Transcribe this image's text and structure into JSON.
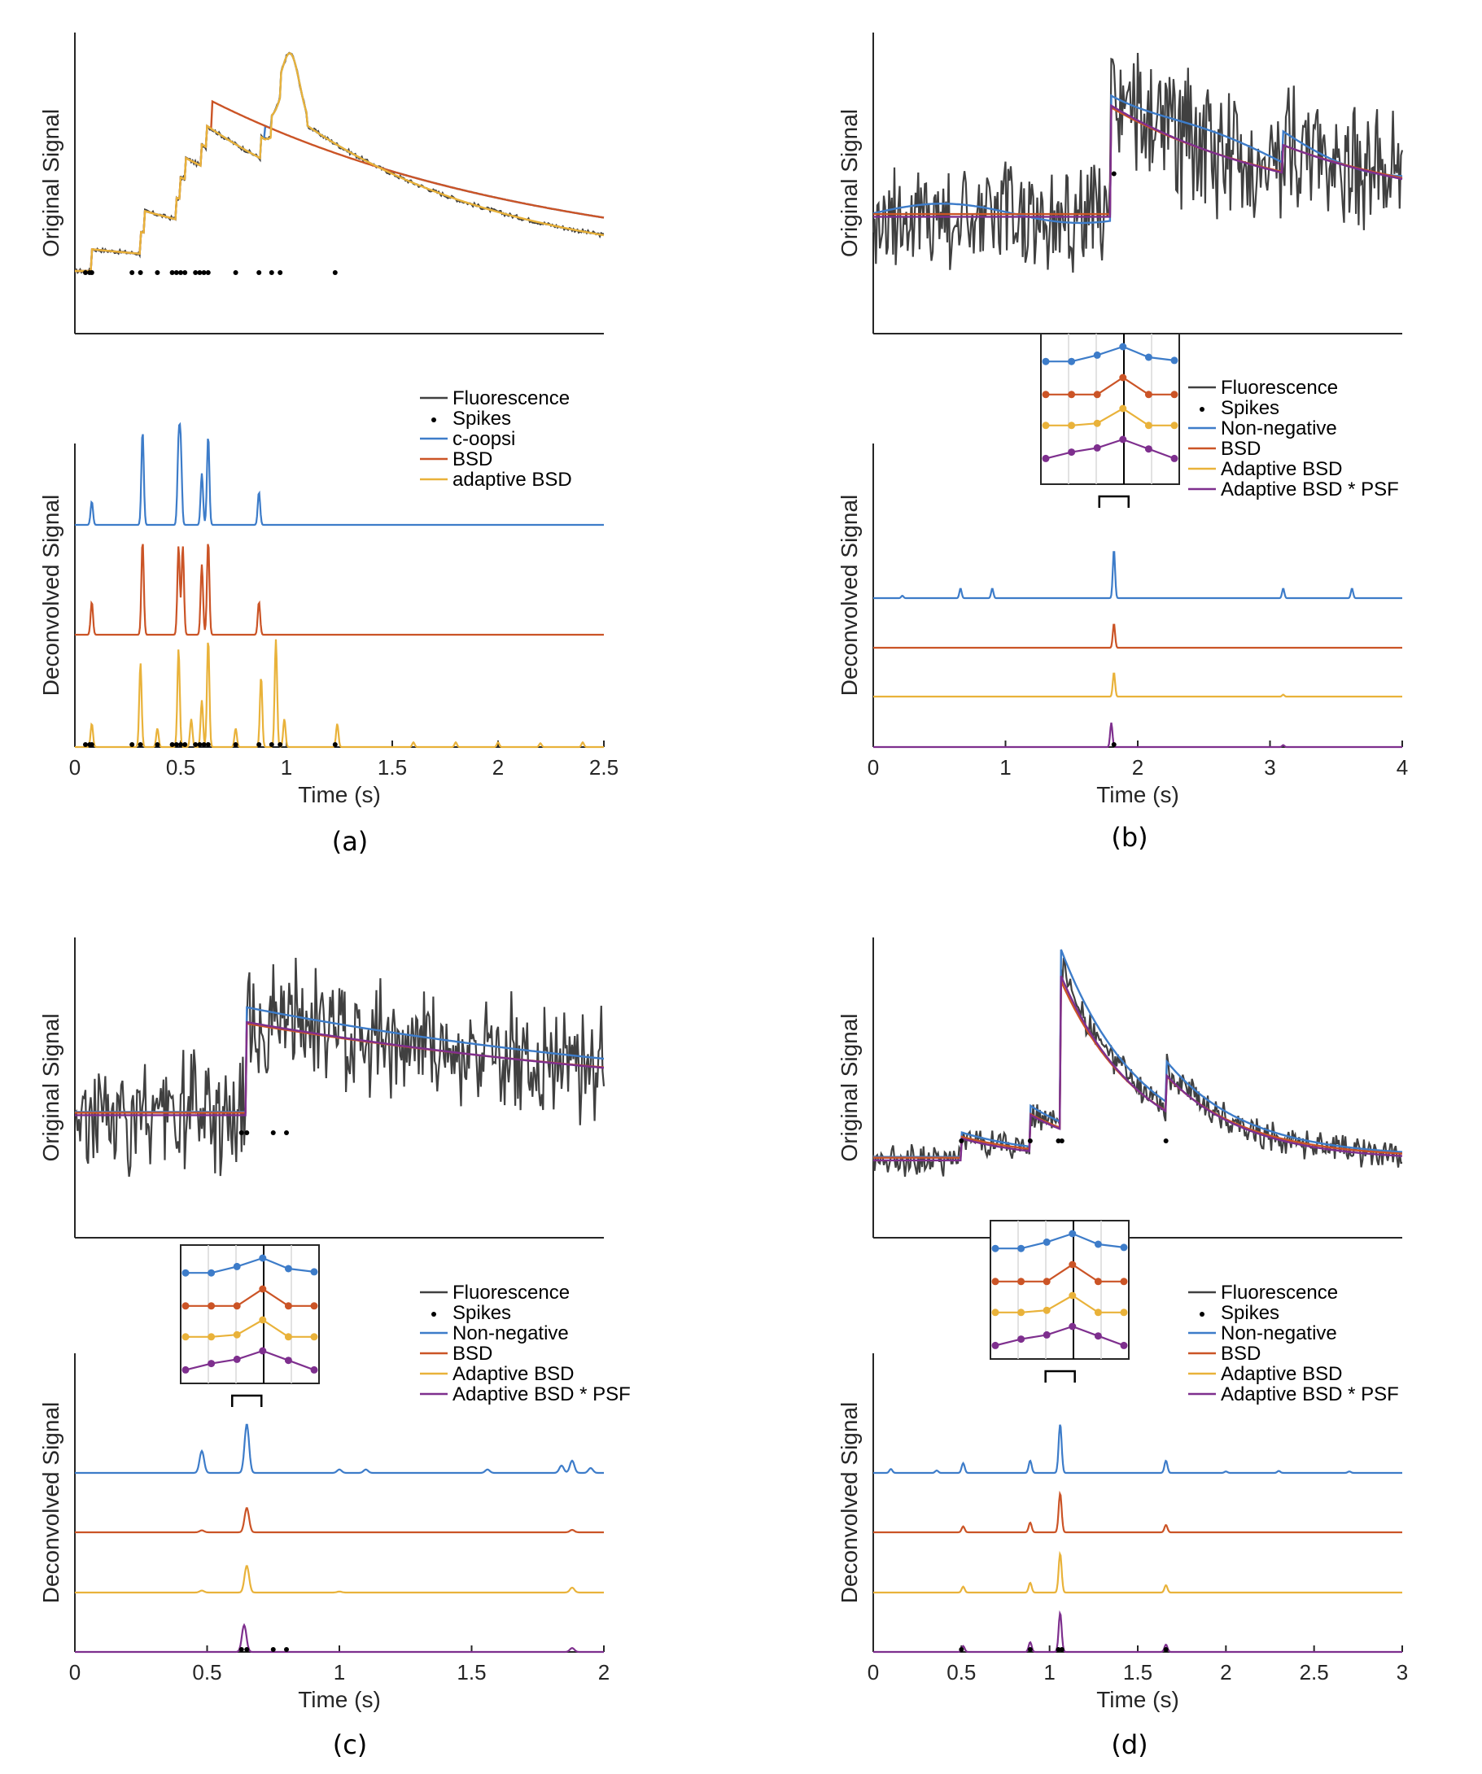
{
  "figure": {
    "colors": {
      "fluorescence": "#404040",
      "spikes": "#000000",
      "blue": "#3D7CC9",
      "red": "#CB5426",
      "yellow": "#E9B23A",
      "purple": "#7E2F8E"
    }
  },
  "chart_data": [
    {
      "id": "a",
      "type": "line",
      "caption": "(a)",
      "top_ylabel": "Original Signal",
      "bottom_ylabel": "Deconvolved Signal",
      "xlabel": "Time (s)",
      "xlim": [
        0,
        2.5
      ],
      "xticks": [
        "0",
        "0.5",
        "1",
        "1.5",
        "2",
        "2.5"
      ],
      "legend": [
        "Fluorescence",
        "Spikes",
        "c-oopsi",
        "BSD",
        "adaptive BSD"
      ],
      "has_inset": false,
      "spike_times": [
        0.05,
        0.07,
        0.08,
        0.27,
        0.31,
        0.39,
        0.46,
        0.48,
        0.5,
        0.52,
        0.57,
        0.59,
        0.61,
        0.63,
        0.76,
        0.87,
        0.93,
        0.97,
        1.23
      ],
      "deconvolved_peaks": {
        "c-oopsi": [
          [
            0.08,
            0.25
          ],
          [
            0.32,
            1.0
          ],
          [
            0.49,
            0.8
          ],
          [
            0.5,
            0.8
          ],
          [
            0.6,
            0.55
          ],
          [
            0.63,
            0.95
          ],
          [
            0.87,
            0.35
          ]
        ],
        "BSD": [
          [
            0.08,
            0.35
          ],
          [
            0.32,
            1.0
          ],
          [
            0.49,
            0.95
          ],
          [
            0.51,
            0.95
          ],
          [
            0.6,
            0.75
          ],
          [
            0.63,
            1.0
          ],
          [
            0.87,
            0.35
          ]
        ],
        "adaptive BSD": [
          [
            0.08,
            0.25
          ],
          [
            0.31,
            0.9
          ],
          [
            0.39,
            0.2
          ],
          [
            0.49,
            1.05
          ],
          [
            0.55,
            0.3
          ],
          [
            0.6,
            0.5
          ],
          [
            0.63,
            1.15
          ],
          [
            0.76,
            0.2
          ],
          [
            0.88,
            0.75
          ],
          [
            0.95,
            1.15
          ],
          [
            0.99,
            0.3
          ],
          [
            1.24,
            0.25
          ],
          [
            1.6,
            0.05
          ],
          [
            1.8,
            0.05
          ],
          [
            2.0,
            0.05
          ],
          [
            2.2,
            0.04
          ],
          [
            2.4,
            0.05
          ]
        ]
      }
    },
    {
      "id": "b",
      "type": "line",
      "caption": "(b)",
      "top_ylabel": "Original Signal",
      "bottom_ylabel": "Deconvolved Signal",
      "xlabel": "Time (s)",
      "xlim": [
        0,
        4
      ],
      "xticks": [
        "0",
        "1",
        "2",
        "3",
        "4"
      ],
      "legend": [
        "Fluorescence",
        "Spikes",
        "Non-negative",
        "BSD",
        "Adaptive BSD",
        "Adaptive BSD * PSF"
      ],
      "has_inset": true,
      "inset_center": 1.82,
      "spike_times": [
        1.82
      ],
      "deconvolved_peaks": {
        "Non-negative": [
          [
            0.22,
            0.05
          ],
          [
            0.66,
            0.2
          ],
          [
            0.9,
            0.2
          ],
          [
            1.82,
            1.0
          ],
          [
            3.1,
            0.2
          ],
          [
            3.62,
            0.2
          ]
        ],
        "BSD": [
          [
            1.82,
            0.5
          ]
        ],
        "Adaptive BSD": [
          [
            1.82,
            0.5
          ],
          [
            3.1,
            0.04
          ]
        ],
        "Adaptive BSD * PSF": [
          [
            1.8,
            0.5
          ],
          [
            3.1,
            0.04
          ]
        ]
      }
    },
    {
      "id": "c",
      "type": "line",
      "caption": "(c)",
      "top_ylabel": "Original Signal",
      "bottom_ylabel": "Deconvolved Signal",
      "xlabel": "Time (s)",
      "xlim": [
        0,
        2
      ],
      "xticks": [
        "0",
        "0.5",
        "1",
        "1.5",
        "2"
      ],
      "legend": [
        "Fluorescence",
        "Spikes",
        "Non-negative",
        "BSD",
        "Adaptive BSD",
        "Adaptive BSD * PSF"
      ],
      "has_inset": true,
      "inset_center": 0.65,
      "spike_times": [
        0.63,
        0.65,
        0.75,
        0.8
      ],
      "deconvolved_peaks": {
        "Non-negative": [
          [
            0.48,
            0.45
          ],
          [
            0.65,
            1.0
          ],
          [
            1.0,
            0.07
          ],
          [
            1.1,
            0.07
          ],
          [
            1.56,
            0.07
          ],
          [
            1.84,
            0.15
          ],
          [
            1.88,
            0.25
          ],
          [
            1.95,
            0.1
          ]
        ],
        "BSD": [
          [
            0.48,
            0.04
          ],
          [
            0.65,
            0.5
          ],
          [
            1.88,
            0.05
          ]
        ],
        "Adaptive BSD": [
          [
            0.48,
            0.04
          ],
          [
            0.65,
            0.55
          ],
          [
            1.0,
            0.02
          ],
          [
            1.88,
            0.1
          ]
        ],
        "Adaptive BSD * PSF": [
          [
            0.64,
            0.55
          ],
          [
            1.88,
            0.08
          ]
        ]
      }
    },
    {
      "id": "d",
      "type": "line",
      "caption": "(d)",
      "top_ylabel": "Original Signal",
      "bottom_ylabel": "Deconvolved Signal",
      "xlabel": "Time (s)",
      "xlim": [
        0,
        3
      ],
      "xticks": [
        "0",
        "0.5",
        "1",
        "1.5",
        "2",
        "2.5",
        "3"
      ],
      "legend": [
        "Fluorescence",
        "Spikes",
        "Non-negative",
        "BSD",
        "Adaptive BSD",
        "Adaptive BSD * PSF"
      ],
      "has_inset": true,
      "inset_center": 1.06,
      "spike_times": [
        0.5,
        0.89,
        1.05,
        1.07,
        1.66
      ],
      "deconvolved_peaks": {
        "Non-negative": [
          [
            0.1,
            0.08
          ],
          [
            0.36,
            0.05
          ],
          [
            0.51,
            0.2
          ],
          [
            0.89,
            0.25
          ],
          [
            1.06,
            1.0
          ],
          [
            1.66,
            0.25
          ],
          [
            2.0,
            0.03
          ],
          [
            2.3,
            0.04
          ],
          [
            2.7,
            0.03
          ]
        ],
        "BSD": [
          [
            0.51,
            0.12
          ],
          [
            0.89,
            0.2
          ],
          [
            1.06,
            0.8
          ],
          [
            1.66,
            0.15
          ]
        ],
        "Adaptive BSD": [
          [
            0.51,
            0.12
          ],
          [
            0.89,
            0.2
          ],
          [
            1.06,
            0.8
          ],
          [
            1.66,
            0.15
          ]
        ],
        "Adaptive BSD * PSF": [
          [
            0.51,
            0.12
          ],
          [
            0.89,
            0.2
          ],
          [
            1.06,
            0.8
          ],
          [
            1.66,
            0.15
          ]
        ]
      }
    }
  ]
}
